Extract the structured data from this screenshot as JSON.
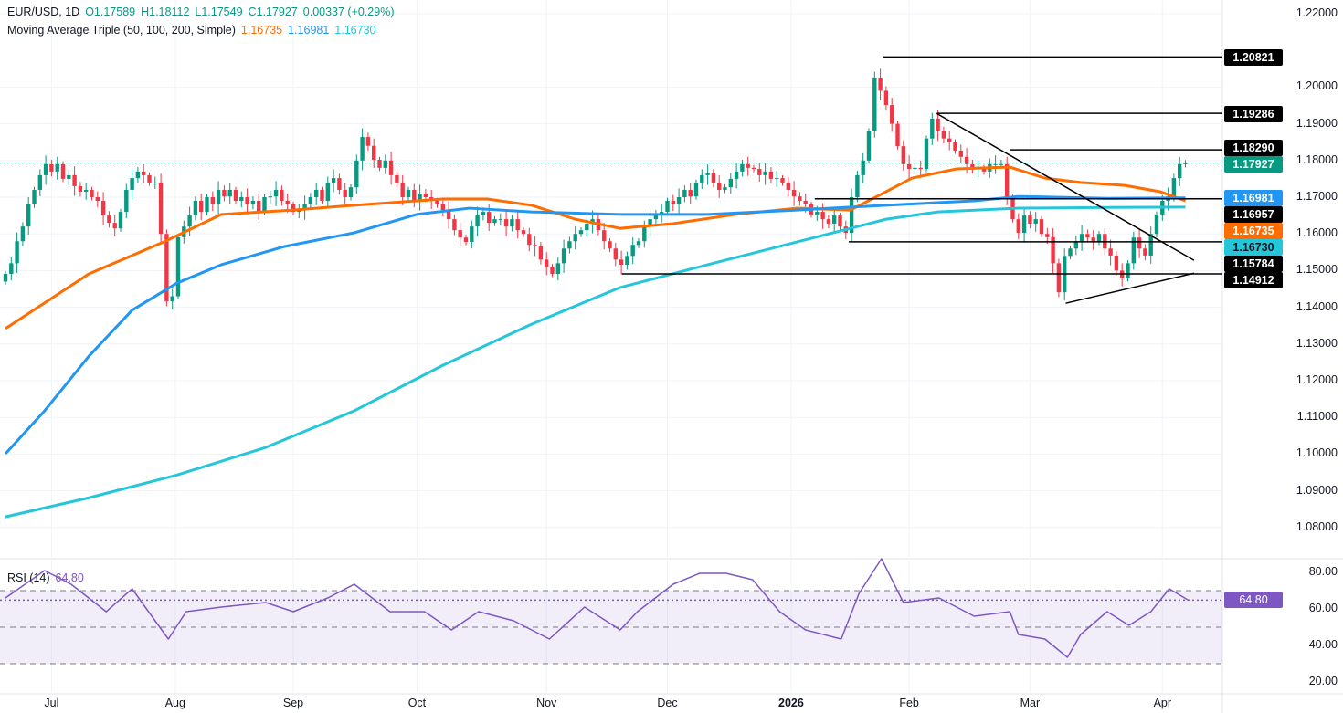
{
  "legend": {
    "symbol": "EUR/USD, 1D",
    "open": "O1.17589",
    "high": "H1.18112",
    "low": "L1.17549",
    "close": "C1.17927",
    "change": "0.00337 (+0.29%)",
    "ma_label": "Moving Average Triple (50, 100, 200, Simple)",
    "ma50": "1.16735",
    "ma100": "1.16981",
    "ma200": "1.16730",
    "rsi_label": "RSI (14)",
    "rsi_value": "64.80"
  },
  "colors": {
    "up": "#089981",
    "down": "#f23645",
    "ma50": "#ff6d00",
    "ma100": "#2196f3",
    "ma200": "#26c6da",
    "rsi": "#7e57c2"
  },
  "chart_data": [
    {
      "type": "candlestick",
      "title": "EUR/USD, 1D",
      "ylim": [
        1.07,
        1.225
      ],
      "y_ticks": [
        "1.22000",
        "1.20000",
        "1.19000",
        "1.18000",
        "1.17000",
        "1.16000",
        "1.15000",
        "1.14000",
        "1.13000",
        "1.12000",
        "1.11000",
        "1.10000",
        "1.09000",
        "1.08000"
      ],
      "y_tick_values": [
        1.22,
        1.2,
        1.19,
        1.18,
        1.17,
        1.16,
        1.15,
        1.14,
        1.13,
        1.12,
        1.11,
        1.1,
        1.09,
        1.08
      ],
      "x_ticks": [
        "Jul",
        "Aug",
        "Sep",
        "Oct",
        "Nov",
        "Dec",
        "2026",
        "Feb",
        "Mar",
        "Apr"
      ],
      "x_tick_bars": [
        8,
        29.5,
        50,
        71.5,
        94,
        115,
        136.5,
        157,
        178,
        201
      ],
      "first_open": 1.147,
      "closes": [
        1.1491,
        1.152,
        1.158,
        1.162,
        1.168,
        1.172,
        1.176,
        1.179,
        1.177,
        1.179,
        1.175,
        1.176,
        1.173,
        1.1715,
        1.172,
        1.17,
        1.169,
        1.165,
        1.163,
        1.1615,
        1.166,
        1.172,
        1.1752,
        1.177,
        1.176,
        1.174,
        1.174,
        1.16,
        1.1416,
        1.143,
        1.1591,
        1.162,
        1.165,
        1.169,
        1.166,
        1.17,
        1.168,
        1.172,
        1.1702,
        1.172,
        1.169,
        1.17,
        1.168,
        1.169,
        1.166,
        1.17,
        1.1702,
        1.172,
        1.169,
        1.168,
        1.166,
        1.1665,
        1.168,
        1.17,
        1.172,
        1.169,
        1.174,
        1.1752,
        1.172,
        1.17,
        1.1727,
        1.18,
        1.1864,
        1.184,
        1.1802,
        1.178,
        1.18,
        1.176,
        1.174,
        1.17,
        1.172,
        1.169,
        1.171,
        1.17,
        1.169,
        1.168,
        1.1665,
        1.164,
        1.161,
        1.159,
        1.1578,
        1.162,
        1.165,
        1.166,
        1.163,
        1.164,
        1.164,
        1.162,
        1.164,
        1.161,
        1.16,
        1.157,
        1.1566,
        1.153,
        1.151,
        1.1491,
        1.152,
        1.156,
        1.158,
        1.16,
        1.161,
        1.1628,
        1.164,
        1.161,
        1.158,
        1.156,
        1.153,
        1.1516,
        1.154,
        1.157,
        1.158,
        1.162,
        1.164,
        1.1653,
        1.166,
        1.169,
        1.168,
        1.17,
        1.172,
        1.1702,
        1.174,
        1.176,
        1.1765,
        1.174,
        1.172,
        1.1727,
        1.175,
        1.177,
        1.179,
        1.178,
        1.1777,
        1.176,
        1.177,
        1.175,
        1.1752,
        1.174,
        1.172,
        1.1702,
        1.169,
        1.168,
        1.1653,
        1.166,
        1.164,
        1.1628,
        1.165,
        1.162,
        1.1603,
        1.17,
        1.176,
        1.18,
        1.188,
        1.2026,
        1.199,
        1.1951,
        1.19,
        1.1839,
        1.179,
        1.1777,
        1.178,
        1.1777,
        1.186,
        1.1914,
        1.188,
        1.186,
        1.185,
        1.1827,
        1.181,
        1.179,
        1.1777,
        1.178,
        1.177,
        1.179,
        1.179,
        1.179,
        1.17,
        1.164,
        1.1603,
        1.165,
        1.1628,
        1.164,
        1.16,
        1.1591,
        1.152,
        1.1441,
        1.154,
        1.156,
        1.158,
        1.16,
        1.159,
        1.1578,
        1.16,
        1.156,
        1.1541,
        1.15,
        1.1479,
        1.152,
        1.159,
        1.156,
        1.1541,
        1.16,
        1.1653,
        1.169,
        1.1702,
        1.1752,
        1.179,
        1.1793
      ],
      "series": [
        {
          "name": "MA 50",
          "color": "#ff6d00",
          "points": [
            [
              0,
              1.1342
            ],
            [
              14.5,
              1.1491
            ],
            [
              27.5,
              1.1578
            ],
            [
              37.5,
              1.1653
            ],
            [
              50,
              1.1665
            ],
            [
              60.6,
              1.1678
            ],
            [
              76,
              1.1695
            ],
            [
              83.7,
              1.1695
            ],
            [
              91.4,
              1.1678
            ],
            [
              99,
              1.164
            ],
            [
              106.8,
              1.1615
            ],
            [
              116,
              1.1628
            ],
            [
              126.8,
              1.1653
            ],
            [
              137.5,
              1.167
            ],
            [
              146.8,
              1.1665
            ],
            [
              151.4,
              1.1702
            ],
            [
              157.5,
              1.1752
            ],
            [
              165.2,
              1.1777
            ],
            [
              174.5,
              1.1782
            ],
            [
              180.6,
              1.1752
            ],
            [
              186.8,
              1.174
            ],
            [
              194.5,
              1.1732
            ],
            [
              200.6,
              1.1715
            ],
            [
              205,
              1.169
            ]
          ]
        },
        {
          "name": "MA 100",
          "color": "#2196f3",
          "points": [
            [
              0,
              1.1001
            ],
            [
              6.8,
              1.1118
            ],
            [
              14.5,
              1.1267
            ],
            [
              22,
              1.1392
            ],
            [
              29.8,
              1.1466
            ],
            [
              37.5,
              1.1516
            ],
            [
              48.3,
              1.1565
            ],
            [
              60.6,
              1.1603
            ],
            [
              71.4,
              1.1653
            ],
            [
              80.6,
              1.167
            ],
            [
              91.4,
              1.166
            ],
            [
              106.8,
              1.1653
            ],
            [
              122,
              1.1653
            ],
            [
              137.5,
              1.1665
            ],
            [
              153,
              1.1678
            ],
            [
              168.3,
              1.169
            ],
            [
              176,
              1.1702
            ],
            [
              191.4,
              1.1697
            ],
            [
              205,
              1.1698
            ]
          ]
        },
        {
          "name": "MA 200",
          "color": "#26c6da",
          "points": [
            [
              0,
              1.0829
            ],
            [
              14.5,
              1.0881
            ],
            [
              29.8,
              1.0943
            ],
            [
              45.2,
              1.1018
            ],
            [
              60.6,
              1.1118
            ],
            [
              76,
              1.1242
            ],
            [
              91.4,
              1.1354
            ],
            [
              106.8,
              1.1454
            ],
            [
              122,
              1.1516
            ],
            [
              137.5,
              1.1578
            ],
            [
              146.8,
              1.1615
            ],
            [
              153,
              1.164
            ],
            [
              162,
              1.166
            ],
            [
              176,
              1.167
            ],
            [
              191.4,
              1.1672
            ],
            [
              205,
              1.1673
            ]
          ]
        }
      ],
      "levels": [
        {
          "label": "1.20821",
          "value": 1.20821,
          "from_bar": 152.5
        },
        {
          "label": "1.19286",
          "value": 1.19286,
          "from_bar": 161.8
        },
        {
          "label": "1.18290",
          "value": 1.1829,
          "from_bar": 174.5
        },
        {
          "label": "1.16957",
          "value": 1.16957,
          "from_bar": 140.6
        },
        {
          "label": "1.15784",
          "value": 1.15784,
          "from_bar": 146.5
        },
        {
          "label": "1.14912",
          "value": 1.14912,
          "from_bar": 107.1
        }
      ],
      "trendlines": [
        [
          [
            161.8,
            1.1928
          ],
          [
            206.5,
            1.1528
          ]
        ],
        [
          [
            184.2,
            1.1411
          ],
          [
            206.5,
            1.1493
          ]
        ]
      ],
      "current_price": {
        "label": "1.17927",
        "value": 1.17927
      }
    },
    {
      "type": "line",
      "title": "RSI (14)",
      "ylim": [
        12,
        88
      ],
      "y_ticks": [
        "80.00",
        "60.00",
        "40.00",
        "20.00"
      ],
      "y_tick_values": [
        80,
        60,
        40,
        20
      ],
      "bands": [
        70,
        50,
        30
      ],
      "current": 64.8,
      "points": [
        [
          0,
          66
        ],
        [
          6.8,
          81
        ],
        [
          11.4,
          73.5
        ],
        [
          17.5,
          58.5
        ],
        [
          22,
          71
        ],
        [
          26,
          53.5
        ],
        [
          28.3,
          43.5
        ],
        [
          31.4,
          58.5
        ],
        [
          37.5,
          61
        ],
        [
          45.2,
          63.5
        ],
        [
          50,
          58.5
        ],
        [
          56,
          66
        ],
        [
          60.6,
          73.5
        ],
        [
          66.8,
          58.5
        ],
        [
          72.8,
          58.5
        ],
        [
          77.5,
          48.5
        ],
        [
          82.2,
          58.5
        ],
        [
          88.3,
          53.5
        ],
        [
          94.5,
          43.5
        ],
        [
          100.6,
          61
        ],
        [
          106.8,
          48.5
        ],
        [
          109.8,
          58.5
        ],
        [
          116,
          73.5
        ],
        [
          120.6,
          79.5
        ],
        [
          125.2,
          79.5
        ],
        [
          129.8,
          76
        ],
        [
          134.5,
          58.5
        ],
        [
          139,
          48.5
        ],
        [
          145.2,
          43.5
        ],
        [
          148.3,
          68.5
        ],
        [
          152.2,
          87.5
        ],
        [
          156,
          63.5
        ],
        [
          162.2,
          66
        ],
        [
          168.3,
          56
        ],
        [
          174.5,
          58.5
        ],
        [
          176,
          46
        ],
        [
          180.6,
          43.5
        ],
        [
          184.5,
          33.5
        ],
        [
          186.8,
          46
        ],
        [
          191.4,
          58.5
        ],
        [
          195.2,
          51
        ],
        [
          199,
          58.5
        ],
        [
          202.2,
          71
        ],
        [
          205.5,
          64.8
        ]
      ]
    }
  ]
}
